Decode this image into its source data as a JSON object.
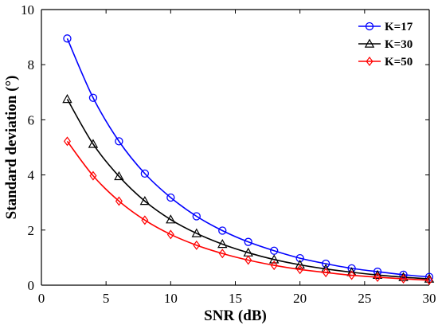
{
  "chart_data": {
    "type": "line",
    "title": "",
    "xlabel": "SNR (dB)",
    "ylabel": "Standard deviation (°)",
    "xlim": [
      0,
      30
    ],
    "ylim": [
      0,
      10
    ],
    "x_ticks": [
      0,
      5,
      10,
      15,
      20,
      25,
      30
    ],
    "y_ticks": [
      0,
      2,
      4,
      6,
      8,
      10
    ],
    "grid": false,
    "legend_position": "top-right",
    "x": [
      2,
      4,
      6,
      8,
      10,
      12,
      14,
      16,
      18,
      20,
      22,
      24,
      26,
      28,
      30
    ],
    "series": [
      {
        "name": "K=17",
        "color": "#0000ff",
        "marker": "circle",
        "values": [
          8.95,
          6.8,
          5.22,
          4.05,
          3.18,
          2.5,
          1.98,
          1.57,
          1.25,
          0.98,
          0.78,
          0.61,
          0.49,
          0.38,
          0.3
        ]
      },
      {
        "name": "K=30",
        "color": "#000000",
        "marker": "triangle",
        "values": [
          6.75,
          5.12,
          3.95,
          3.05,
          2.38,
          1.88,
          1.49,
          1.18,
          0.93,
          0.74,
          0.59,
          0.47,
          0.37,
          0.29,
          0.23
        ]
      },
      {
        "name": "K=50",
        "color": "#ff0000",
        "marker": "diamond",
        "values": [
          5.22,
          3.97,
          3.05,
          2.36,
          1.84,
          1.45,
          1.15,
          0.91,
          0.72,
          0.57,
          0.46,
          0.36,
          0.29,
          0.23,
          0.18
        ]
      }
    ]
  }
}
